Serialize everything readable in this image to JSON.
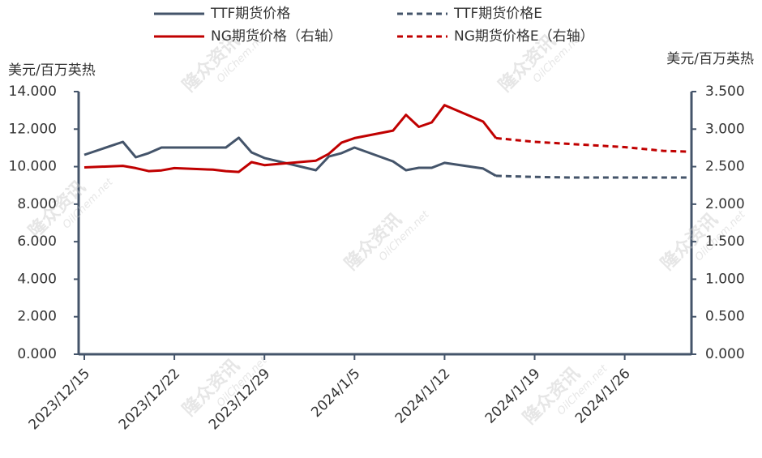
{
  "chart_data": {
    "type": "line",
    "y_label": "美元/百万英热",
    "y2_label": "美元/百万英热",
    "watermark": [
      "隆众资讯",
      "OilChem.net"
    ],
    "x": [
      "2023/12/15",
      "2023/12/18",
      "2023/12/19",
      "2023/12/20",
      "2023/12/21",
      "2023/12/22",
      "2023/12/25",
      "2023/12/26",
      "2023/12/27",
      "2023/12/28",
      "2023/12/29",
      "2024/1/2",
      "2024/1/3",
      "2024/1/4",
      "2024/1/5",
      "2024/1/8",
      "2024/1/9",
      "2024/1/10",
      "2024/1/11",
      "2024/1/12",
      "2024/1/15",
      "2024/1/16",
      "2024/1/19",
      "2024/1/22",
      "2024/1/26",
      "2024/1/29",
      "2024/1/31"
    ],
    "xlim": [
      "2023/12/15",
      "2024/1/31"
    ],
    "xticks": [
      "2023/12/15",
      "2023/12/22",
      "2023/12/29",
      "2024/1/5",
      "2024/1/12",
      "2024/1/19",
      "2024/1/26"
    ],
    "ylim": [
      0,
      14
    ],
    "yticks": [
      {
        "value": 0,
        "label": "0.000"
      },
      {
        "value": 2,
        "label": "2.000"
      },
      {
        "value": 4,
        "label": "4.000"
      },
      {
        "value": 6,
        "label": "6.000"
      },
      {
        "value": 8,
        "label": "8.000"
      },
      {
        "value": 10,
        "label": "10.000"
      },
      {
        "value": 12,
        "label": "12.000"
      },
      {
        "value": 14,
        "label": "14.000"
      }
    ],
    "y2lim": [
      0,
      3.5
    ],
    "y2ticks": [
      {
        "value": 0,
        "label": "0.000"
      },
      {
        "value": 0.5,
        "label": "0.500"
      },
      {
        "value": 1,
        "label": "1.000"
      },
      {
        "value": 1.5,
        "label": "1.500"
      },
      {
        "value": 2,
        "label": "2.000"
      },
      {
        "value": 2.5,
        "label": "2.500"
      },
      {
        "value": 3,
        "label": "3.000"
      },
      {
        "value": 3.5,
        "label": "3.500"
      }
    ],
    "series": [
      {
        "name": "TTF期货价格",
        "color": "#44546a",
        "dashed": false,
        "values": [
          10.63,
          11.32,
          10.5,
          10.72,
          11.02,
          11.02,
          11.02,
          11.02,
          11.54,
          10.76,
          10.46,
          9.81,
          10.54,
          10.72,
          11.02,
          10.28,
          9.81,
          9.94,
          9.94,
          10.2,
          9.9,
          9.51,
          null,
          null,
          null,
          null,
          null
        ]
      },
      {
        "name": "TTF期货价格E",
        "color": "#44546a",
        "dashed": true,
        "values": [
          null,
          null,
          null,
          null,
          null,
          null,
          null,
          null,
          null,
          null,
          null,
          null,
          null,
          null,
          null,
          null,
          null,
          null,
          null,
          null,
          null,
          9.51,
          9.45,
          9.42,
          9.42,
          9.42,
          9.42
        ]
      },
      {
        "name": "NG期货价格（右轴）",
        "color": "#c00000",
        "dashed": false,
        "axis": "y2",
        "values": [
          2.49,
          2.51,
          2.48,
          2.44,
          2.45,
          2.48,
          2.46,
          2.44,
          2.43,
          2.56,
          2.52,
          2.58,
          2.67,
          2.82,
          2.88,
          2.98,
          3.19,
          3.03,
          3.09,
          3.32,
          3.1,
          2.88,
          null,
          null,
          null,
          null,
          null
        ]
      },
      {
        "name": "NG期货价格E（右轴）",
        "color": "#c00000",
        "dashed": true,
        "axis": "y2",
        "values": [
          null,
          null,
          null,
          null,
          null,
          null,
          null,
          null,
          null,
          null,
          null,
          null,
          null,
          null,
          null,
          null,
          null,
          null,
          null,
          null,
          null,
          2.88,
          2.83,
          2.8,
          2.76,
          2.71,
          2.7
        ]
      }
    ]
  }
}
